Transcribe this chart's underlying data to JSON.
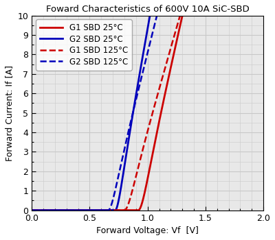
{
  "title": "Foward Characteristics of 600V 10A SiC-SBD",
  "xlabel": "Forward Voltage: Vf  [V]",
  "ylabel": "Forward Current: If [A]",
  "xlim": [
    0,
    2
  ],
  "ylim": [
    0,
    10
  ],
  "xticks": [
    0,
    0.5,
    1.0,
    1.5,
    2.0
  ],
  "yticks": [
    0,
    1,
    2,
    3,
    4,
    5,
    6,
    7,
    8,
    9,
    10
  ],
  "grid_color": "#c8c8c8",
  "background_color": "#e8e8e8",
  "curves": [
    {
      "label": "G1 SBD 25°C",
      "color": "#cc0000",
      "linestyle": "solid",
      "linewidth": 2.0,
      "vth": 0.92,
      "n": 0.055,
      "ron": 0.038
    },
    {
      "label": "G2 SBD 25°C",
      "color": "#0000bb",
      "linestyle": "solid",
      "linewidth": 2.0,
      "vth": 0.72,
      "n": 0.042,
      "ron": 0.03
    },
    {
      "label": "G1 SBD 125°C",
      "color": "#cc0000",
      "linestyle": "dashed",
      "linewidth": 1.8,
      "vth": 0.8,
      "n": 0.055,
      "ron": 0.048
    },
    {
      "label": "G2 SBD 125°C",
      "color": "#0000bb",
      "linestyle": "dashed",
      "linewidth": 1.8,
      "vth": 0.66,
      "n": 0.048,
      "ron": 0.042
    }
  ],
  "legend": {
    "loc": "upper left",
    "fontsize": 8.5,
    "frameon": true,
    "edgecolor": "#999999",
    "facecolor": "#ffffff"
  },
  "title_fontsize": 9.5,
  "label_fontsize": 9,
  "tick_fontsize": 9
}
